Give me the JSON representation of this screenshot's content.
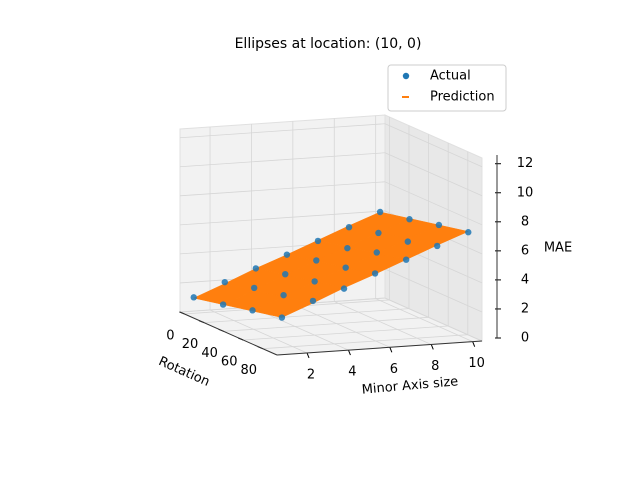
{
  "chart_data": {
    "type": "scatter3d",
    "title": "Ellipses at location: (10, 0)",
    "xlabel": "Rotation",
    "ylabel": "Minor Axis size",
    "zlabel": "MAE",
    "xlim": [
      -4.5,
      94.5
    ],
    "ylim": [
      0.55,
      10.45
    ],
    "zlim": [
      0,
      12.6
    ],
    "xticks": [
      0,
      20,
      40,
      60,
      80
    ],
    "yticks": [
      2,
      4,
      6,
      8,
      10
    ],
    "zticks": [
      0,
      2,
      4,
      6,
      8,
      10,
      12
    ],
    "grid": true,
    "legend": "upper right",
    "series": [
      {
        "name": "Actual",
        "color": "#1f77b4",
        "x": [
          0,
          0,
          0,
          0,
          0,
          0,
          0,
          30,
          30,
          30,
          30,
          30,
          30,
          30,
          60,
          60,
          60,
          60,
          60,
          60,
          60,
          90,
          90,
          90,
          90,
          90,
          90,
          90
        ],
        "y": [
          1,
          2.5,
          4,
          5.5,
          7,
          8.5,
          10,
          1,
          2.5,
          4,
          5.5,
          7,
          8.5,
          10,
          1,
          2.5,
          4,
          5.5,
          7,
          8.5,
          10,
          1,
          2.5,
          4,
          5.5,
          7,
          8.5,
          10
        ],
        "z": [
          1.1,
          2.0,
          2.8,
          3.6,
          4.4,
          5.2,
          6.1,
          1.5,
          2.5,
          3.3,
          4.1,
          4.8,
          5.7,
          6.5,
          2.0,
          2.9,
          3.7,
          4.5,
          5.4,
          6.0,
          7.0,
          2.4,
          3.4,
          4.1,
          5.0,
          5.8,
          6.6,
          7.4
        ]
      },
      {
        "name": "Prediction",
        "color": "#ff7f0e",
        "surface_x": [
          0,
          30,
          60,
          90
        ],
        "surface_y": [
          1,
          2.5,
          4,
          5.5,
          7,
          8.5,
          10
        ],
        "surface_z": [
          [
            1.05,
            1.9,
            2.8,
            3.6,
            4.45,
            5.3,
            6.1
          ],
          [
            1.5,
            2.35,
            3.25,
            4.05,
            4.9,
            5.75,
            6.55
          ],
          [
            1.95,
            2.8,
            3.7,
            4.5,
            5.35,
            6.2,
            7.0
          ],
          [
            2.4,
            3.25,
            4.15,
            4.95,
            5.8,
            6.65,
            7.45
          ]
        ]
      }
    ]
  }
}
